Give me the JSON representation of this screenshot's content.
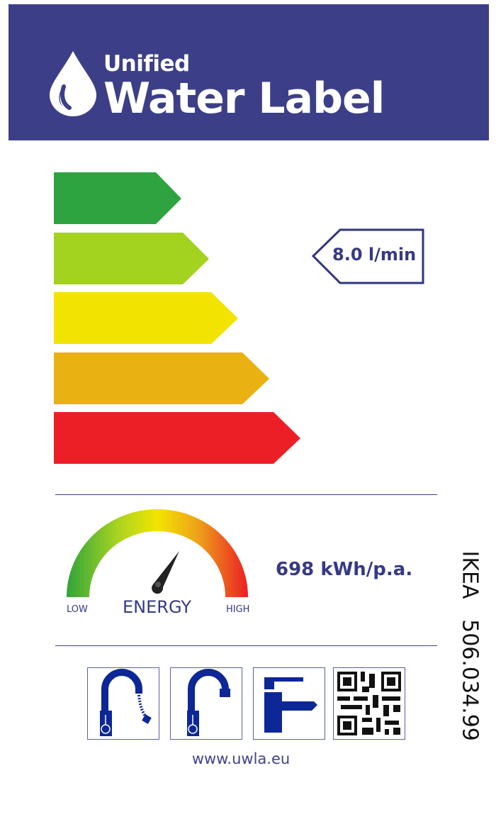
{
  "header": {
    "title_line1": "Unified",
    "title_line2": "Water Label",
    "icon": "water-drop-icon",
    "color": "#3c3f87"
  },
  "rating": {
    "classes": [
      {
        "color": "#2ea33f"
      },
      {
        "color": "#a3d21f"
      },
      {
        "color": "#f3e300"
      },
      {
        "color": "#e9b111"
      },
      {
        "color": "#ec1f26"
      }
    ],
    "value": "8.0 l/min",
    "pointer_class_index": 1
  },
  "energy": {
    "value": "698 kWh/p.a.",
    "gauge_label": "ENERGY",
    "low_label": "LOW",
    "high_label": "HIGH"
  },
  "product": {
    "brand": "IKEA",
    "code": "506.034.99"
  },
  "icons": [
    "flexible-hose-tap-icon",
    "high-spout-tap-icon",
    "basin-mixer-icon",
    "qr-code-icon"
  ],
  "footer": {
    "url": "www.uwla.eu"
  }
}
